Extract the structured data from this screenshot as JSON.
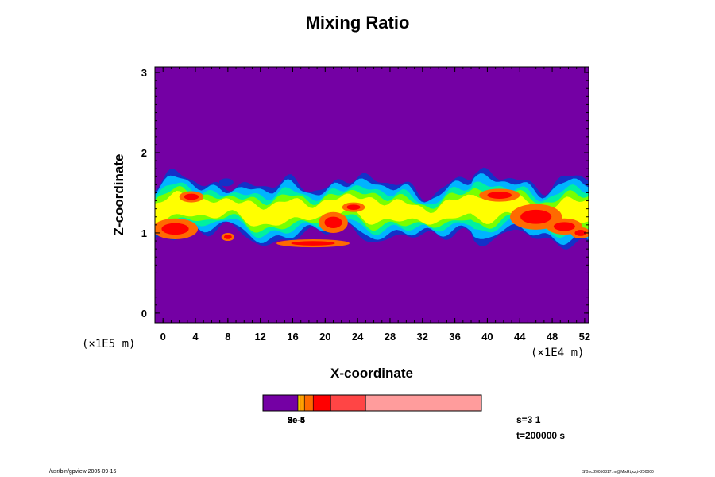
{
  "chart_data": {
    "type": "heatmap",
    "title": "Mixing Ratio",
    "xlabel": "X-coordinate",
    "ylabel": "Z-coordinate",
    "x_unit": "(×1E4 m)",
    "y_unit": "(×1E5 m)",
    "xlim": [
      -1,
      52.5
    ],
    "ylim": [
      -0.12,
      3.07
    ],
    "x_ticks": [
      "0",
      "4",
      "8",
      "12",
      "16",
      "20",
      "24",
      "28",
      "32",
      "36",
      "40",
      "44",
      "48",
      "52"
    ],
    "x_tick_values": [
      0,
      4,
      8,
      12,
      16,
      20,
      24,
      28,
      32,
      36,
      40,
      44,
      48,
      52
    ],
    "y_ticks": [
      "0",
      "1",
      "2",
      "3"
    ],
    "y_tick_values": [
      0,
      1,
      2,
      3
    ],
    "background_color": "#7400a4",
    "colorbar": {
      "colors": [
        "#7400a4",
        "#f0c800",
        "#ffa000",
        "#ff6a00",
        "#ff0000",
        "#ff4545",
        "#ff9c9c"
      ],
      "widths": [
        0.16,
        0.01,
        0.02,
        0.04,
        0.08,
        0.16,
        0.53
      ],
      "labels": [
        "2e-5",
        "3e-5",
        "5e-4"
      ]
    }
  },
  "info": {
    "s": "s=3 1",
    "t": "t=200000 s"
  },
  "footer": {
    "left": "/usr/bin/gpview 2005-09-16",
    "right": "S'Bnc 20050817.nc@MixRt,xz,t=200000"
  }
}
